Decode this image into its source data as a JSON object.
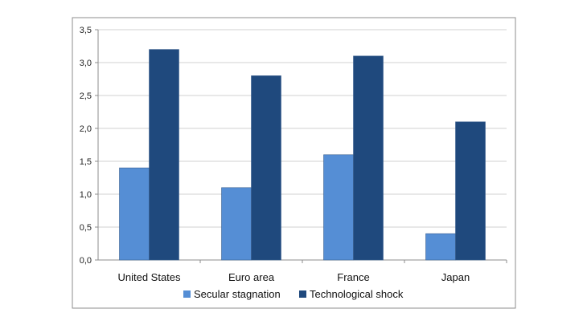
{
  "chart_data": {
    "type": "bar",
    "categories": [
      "United States",
      "Euro area",
      "France",
      "Japan"
    ],
    "series": [
      {
        "name": "Secular stagnation",
        "values": [
          1.4,
          1.1,
          1.6,
          0.4
        ],
        "color": "#558ed5"
      },
      {
        "name": "Technological shock",
        "values": [
          3.2,
          2.8,
          3.1,
          2.1
        ],
        "color": "#1f497d"
      }
    ],
    "ylim": [
      0,
      3.5
    ],
    "y_ticks": [
      "0,0",
      "0,5",
      "1,0",
      "1,5",
      "2,0",
      "2,5",
      "3,0",
      "3,5"
    ],
    "y_tick_values": [
      0,
      0.5,
      1.0,
      1.5,
      2.0,
      2.5,
      3.0,
      3.5
    ],
    "grid": true,
    "legend_position": "bottom"
  }
}
